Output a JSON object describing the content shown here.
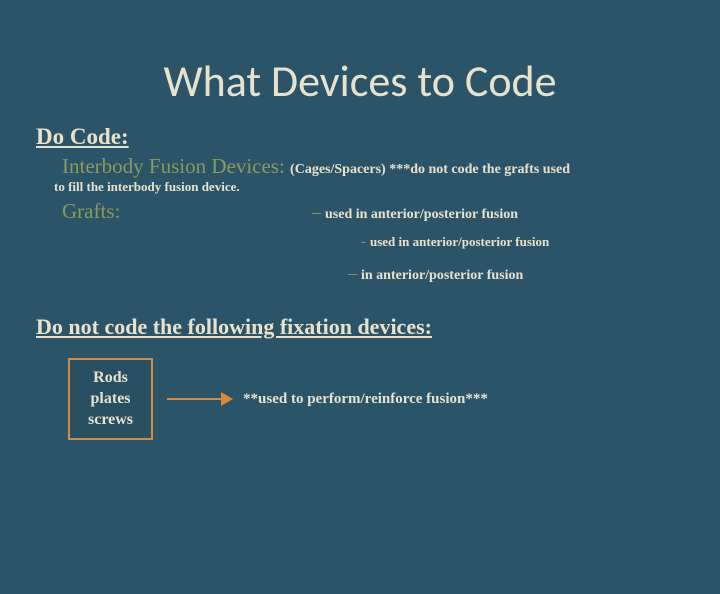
{
  "title": "What Devices to Code",
  "doCode": {
    "heading": "Do Code:",
    "interbody": {
      "label": "Interbody Fusion Devices:",
      "note": "(Cages/Spacers)   ***do not code the grafts used"
    },
    "fillNote": "to fill the  interbody fusion device.",
    "grafts": {
      "label": "Grafts:",
      "line1": "used in anterior/posterior fusion",
      "line2": "used in anterior/posterior fusion",
      "line3": "in anterior/posterior fusion"
    }
  },
  "doNot": {
    "heading": "Do not code the following fixation devices:",
    "box": {
      "line1": "Rods",
      "line2": "plates",
      "line3": "screws"
    },
    "note": "**used to perform/reinforce fusion***"
  },
  "colors": {
    "background": "#2c5468",
    "text": "#e8e2cc",
    "accent": "#8a9b5e",
    "box_border": "#d88a3a"
  }
}
